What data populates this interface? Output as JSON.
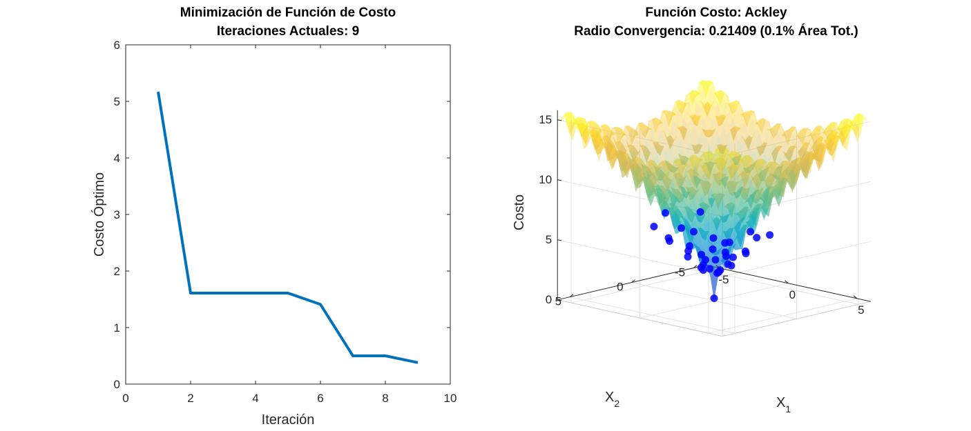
{
  "chart_data": [
    {
      "type": "line",
      "title": "Minimización de Función de Costo",
      "subtitle": "Iteraciones Actuales: 9",
      "xlabel": "Iteración",
      "ylabel": "Costo Óptimo",
      "xlim": [
        0,
        10
      ],
      "ylim": [
        0,
        6
      ],
      "xticks": [
        "0",
        "2",
        "4",
        "6",
        "8",
        "10"
      ],
      "yticks": [
        "0",
        "1",
        "2",
        "3",
        "4",
        "5",
        "6"
      ],
      "grid": false,
      "line_color": "#0072BD",
      "series": [
        {
          "x": [
            1,
            2,
            3,
            4,
            5,
            6,
            7,
            8,
            9
          ],
          "values": [
            5.17,
            1.61,
            1.61,
            1.61,
            1.61,
            1.41,
            0.5,
            0.5,
            0.38
          ]
        }
      ]
    },
    {
      "type": "surface3d",
      "title": "Función Costo: Ackley",
      "subtitle": "Radio Convergencia: 0.21409 (0.1% Área Tot.)",
      "xlabel": "X",
      "xlabel_sub": "1",
      "ylabel": "X",
      "ylabel_sub": "2",
      "zlabel": "Costo",
      "xticks": [
        "-5",
        "0",
        "5"
      ],
      "yticks": [
        "-5",
        "0",
        "5"
      ],
      "zticks": [
        "0",
        "5",
        "10",
        "15"
      ],
      "xlim": [
        -6,
        6
      ],
      "ylim": [
        -6,
        6
      ],
      "zlim": [
        0,
        15
      ],
      "grid": true,
      "colormap": "parula",
      "point_color": "#0000ff",
      "points": [
        {
          "x": 0,
          "y": 0,
          "z": 0.2
        },
        {
          "x": 0.5,
          "y": 0.3,
          "z": 2.5
        },
        {
          "x": -0.4,
          "y": 0.6,
          "z": 2.8
        },
        {
          "x": 0.8,
          "y": -0.5,
          "z": 3.0
        },
        {
          "x": -0.9,
          "y": -0.3,
          "z": 3.1
        },
        {
          "x": 0.2,
          "y": 1.1,
          "z": 3.3
        },
        {
          "x": 1.2,
          "y": 0.2,
          "z": 3.4
        },
        {
          "x": -1.1,
          "y": 0.9,
          "z": 3.6
        },
        {
          "x": 0.3,
          "y": -1.2,
          "z": 3.4
        },
        {
          "x": 1.0,
          "y": 1.0,
          "z": 3.9
        },
        {
          "x": -1.0,
          "y": -1.0,
          "z": 3.8
        },
        {
          "x": 1.5,
          "y": -0.9,
          "z": 4.1
        },
        {
          "x": -1.6,
          "y": 0.2,
          "z": 4.2
        },
        {
          "x": 0.6,
          "y": 1.7,
          "z": 4.4
        },
        {
          "x": -0.5,
          "y": -1.8,
          "z": 4.3
        },
        {
          "x": 1.9,
          "y": 1.2,
          "z": 4.8
        },
        {
          "x": -1.8,
          "y": 1.6,
          "z": 4.9
        },
        {
          "x": 2.1,
          "y": -0.2,
          "z": 4.6
        },
        {
          "x": 0.1,
          "y": 2.2,
          "z": 4.7
        },
        {
          "x": -2.2,
          "y": -0.8,
          "z": 5.0
        },
        {
          "x": 1.3,
          "y": -2.0,
          "z": 5.1
        },
        {
          "x": 2.5,
          "y": 1.9,
          "z": 5.9
        },
        {
          "x": -2.4,
          "y": 2.2,
          "z": 6.1
        },
        {
          "x": 2.7,
          "y": -1.5,
          "z": 5.8
        },
        {
          "x": -0.8,
          "y": 2.8,
          "z": 5.7
        },
        {
          "x": -2.8,
          "y": -2.0,
          "z": 6.2
        },
        {
          "x": 0.5,
          "y": 0.9,
          "z": 3.0
        },
        {
          "x": -0.2,
          "y": -0.6,
          "z": 2.2
        },
        {
          "x": 0.9,
          "y": 0.5,
          "z": 2.9
        },
        {
          "x": -0.7,
          "y": 0.1,
          "z": 2.4
        },
        {
          "x": 1.6,
          "y": 0.8,
          "z": 4.3
        },
        {
          "x": -1.4,
          "y": -1.5,
          "z": 4.5
        },
        {
          "x": 3.0,
          "y": 0.4,
          "z": 6.6
        },
        {
          "x": 0.4,
          "y": 3.1,
          "z": 6.9
        },
        {
          "x": -3.0,
          "y": 0.6,
          "z": 6.7
        }
      ]
    }
  ]
}
